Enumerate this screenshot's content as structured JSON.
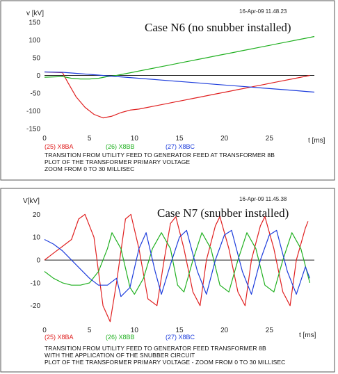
{
  "chart_data": [
    {
      "type": "line",
      "title": "Case N6 (no snubber installed)",
      "timestamp": "16-Apr-09  11.48.23",
      "ylabel": "v [kV]",
      "xlabel": "t [ms]",
      "xlim": [
        0,
        30
      ],
      "ylim": [
        -160,
        170
      ],
      "xticks": [
        0,
        5,
        10,
        15,
        20,
        25
      ],
      "yticks": [
        150,
        100,
        50,
        0,
        -50,
        -100,
        -150
      ],
      "legend": [
        "(25) X8BA",
        "(26) X8BB",
        "(27) X8BC"
      ],
      "caption": [
        "TRANSITION FROM UTILITY FEED TO GENERATOR FEED AT TRANSFORMER 8B",
        "PLOT OF THE TRANSFORMER PRIMARY VOLTAGE",
        "ZOOM FROM 0 TO 30 MILLISEC"
      ],
      "series": [
        {
          "name": "(25) X8BA",
          "color": "#e02020",
          "values": [
            [
              0,
              10
            ],
            [
              2,
              8
            ],
            [
              2.6,
              -20
            ],
            [
              3.5,
              -60
            ],
            [
              4.5,
              -90
            ],
            [
              5.5,
              -110
            ],
            [
              6.5,
              -120
            ],
            [
              7.5,
              -115
            ],
            [
              8.5,
              -105
            ],
            [
              9.5,
              -98
            ],
            [
              10.5,
              -95
            ],
            [
              11.5,
              -90
            ],
            [
              12.5,
              -85
            ],
            [
              13.5,
              -80
            ],
            [
              14.5,
              -75
            ],
            [
              15.5,
              -70
            ],
            [
              16.5,
              -65
            ],
            [
              17.5,
              -60
            ],
            [
              18.5,
              -55
            ],
            [
              19.5,
              -50
            ],
            [
              20.5,
              -45
            ],
            [
              21.5,
              -40
            ],
            [
              22.5,
              -35
            ],
            [
              23.5,
              -30
            ],
            [
              24.5,
              -25
            ],
            [
              25.5,
              -20
            ],
            [
              26.5,
              -15
            ],
            [
              27.5,
              -10
            ],
            [
              28.5,
              -5
            ],
            [
              29.5,
              0
            ]
          ]
        },
        {
          "name": "(26) X8BB",
          "color": "#20b020",
          "values": [
            [
              0,
              -5
            ],
            [
              2,
              -3
            ],
            [
              3,
              -8
            ],
            [
              4,
              -10
            ],
            [
              5,
              -10
            ],
            [
              6,
              -8
            ],
            [
              7,
              -3
            ],
            [
              8,
              0
            ],
            [
              9,
              5
            ],
            [
              10,
              10
            ],
            [
              11,
              15
            ],
            [
              12,
              20
            ],
            [
              13,
              25
            ],
            [
              14,
              30
            ],
            [
              15,
              35
            ],
            [
              16,
              40
            ],
            [
              17,
              45
            ],
            [
              18,
              50
            ],
            [
              19,
              55
            ],
            [
              20,
              60
            ],
            [
              21,
              65
            ],
            [
              22,
              70
            ],
            [
              23,
              75
            ],
            [
              24,
              80
            ],
            [
              25,
              85
            ],
            [
              26,
              90
            ],
            [
              27,
              95
            ],
            [
              28,
              100
            ],
            [
              29,
              105
            ],
            [
              30,
              110
            ]
          ]
        },
        {
          "name": "(27) X8BC",
          "color": "#1c3cdc",
          "values": [
            [
              0,
              10
            ],
            [
              2,
              9
            ],
            [
              3,
              7
            ],
            [
              4,
              5
            ],
            [
              5,
              3
            ],
            [
              6,
              1
            ],
            [
              7,
              -1
            ],
            [
              8,
              -3
            ],
            [
              9,
              -5
            ],
            [
              10,
              -7
            ],
            [
              11,
              -9
            ],
            [
              12,
              -11
            ],
            [
              13,
              -13
            ],
            [
              14,
              -15
            ],
            [
              15,
              -17
            ],
            [
              16,
              -19
            ],
            [
              17,
              -21
            ],
            [
              18,
              -23
            ],
            [
              19,
              -25
            ],
            [
              20,
              -27
            ],
            [
              21,
              -29
            ],
            [
              22,
              -31
            ],
            [
              23,
              -33
            ],
            [
              24,
              -35
            ],
            [
              25,
              -37
            ],
            [
              26,
              -39
            ],
            [
              27,
              -41
            ],
            [
              28,
              -43
            ],
            [
              29,
              -45
            ],
            [
              30,
              -47
            ]
          ]
        }
      ]
    },
    {
      "type": "line",
      "title": "Case N7 (snubber installed)",
      "timestamp": "16-Apr-09  11.45.38",
      "ylabel": "V[kV]",
      "xlabel": "t [ms]",
      "xlim": [
        0,
        30
      ],
      "ylim": [
        -28,
        25
      ],
      "xticks": [
        0,
        5,
        10,
        15,
        20,
        25
      ],
      "yticks": [
        20,
        10,
        0,
        -10,
        -20
      ],
      "legend": [
        "(25) X8BA",
        "(26) X8BB",
        "(27) X8BC"
      ],
      "caption": [
        "TRANSITION FROM UTILITY FEED TO GENERATOR FEED TRANSFORMER 8B",
        "WITH THE APPLICATION OF THE SNUBBER CIRCUIT",
        "PLOT OF THE TRANSFORMER PRIMARY VOLTAGE - ZOOM FROM 0 TO 30 MILLISEC"
      ],
      "series": [
        {
          "name": "(25) X8BA",
          "color": "#e02020",
          "values": [
            [
              0,
              0
            ],
            [
              1,
              3
            ],
            [
              2,
              6
            ],
            [
              3,
              9
            ],
            [
              3.8,
              18
            ],
            [
              4.5,
              20
            ],
            [
              5.5,
              10
            ],
            [
              6.5,
              -20
            ],
            [
              7.3,
              -27
            ],
            [
              8,
              -10
            ],
            [
              9,
              18
            ],
            [
              9.6,
              20
            ],
            [
              10.5,
              5
            ],
            [
              11.5,
              -17
            ],
            [
              12.5,
              -20
            ],
            [
              13.3,
              0
            ],
            [
              14,
              16
            ],
            [
              14.6,
              19
            ],
            [
              15.5,
              5
            ],
            [
              16.5,
              -14
            ],
            [
              17.3,
              -20
            ],
            [
              18,
              0
            ],
            [
              19,
              15
            ],
            [
              19.5,
              19
            ],
            [
              20.5,
              5
            ],
            [
              21.5,
              -14
            ],
            [
              22.3,
              -20
            ],
            [
              23,
              0
            ],
            [
              24,
              15
            ],
            [
              24.5,
              19
            ],
            [
              25.5,
              5
            ],
            [
              26.5,
              -14
            ],
            [
              27.3,
              -20
            ],
            [
              28,
              0
            ],
            [
              29,
              14
            ],
            [
              29.3,
              17
            ]
          ]
        },
        {
          "name": "(26) X8BB",
          "color": "#20b020",
          "values": [
            [
              0,
              -5
            ],
            [
              1,
              -8
            ],
            [
              2,
              -10
            ],
            [
              3,
              -11
            ],
            [
              4,
              -11
            ],
            [
              5,
              -10
            ],
            [
              6,
              -5
            ],
            [
              7,
              5
            ],
            [
              7.5,
              12
            ],
            [
              8.5,
              5
            ],
            [
              9.5,
              -12
            ],
            [
              10,
              -15
            ],
            [
              11,
              -8
            ],
            [
              12,
              5
            ],
            [
              13,
              12
            ],
            [
              14,
              5
            ],
            [
              14.8,
              -11
            ],
            [
              15.5,
              -14
            ],
            [
              16.5,
              0
            ],
            [
              17.5,
              12
            ],
            [
              18.5,
              5
            ],
            [
              19.5,
              -11
            ],
            [
              20.5,
              -14
            ],
            [
              21.5,
              0
            ],
            [
              22.5,
              12
            ],
            [
              23.5,
              5
            ],
            [
              24.5,
              -11
            ],
            [
              25.5,
              -14
            ],
            [
              26.5,
              0
            ],
            [
              27.5,
              12
            ],
            [
              28.5,
              5
            ],
            [
              29.5,
              -10
            ]
          ]
        },
        {
          "name": "(27) X8BC",
          "color": "#1c3cdc",
          "values": [
            [
              0,
              9
            ],
            [
              1,
              7
            ],
            [
              2,
              4
            ],
            [
              3,
              0
            ],
            [
              4,
              -4
            ],
            [
              5,
              -8
            ],
            [
              6,
              -11
            ],
            [
              7,
              -11
            ],
            [
              8,
              -8
            ],
            [
              8.5,
              -16
            ],
            [
              9.5,
              -12
            ],
            [
              10.5,
              5
            ],
            [
              11.3,
              12
            ],
            [
              12.3,
              -5
            ],
            [
              13,
              -15
            ],
            [
              14,
              -2
            ],
            [
              15,
              10
            ],
            [
              15.8,
              13
            ],
            [
              17,
              -5
            ],
            [
              18,
              -15
            ],
            [
              19,
              0
            ],
            [
              20,
              11
            ],
            [
              20.8,
              13
            ],
            [
              22,
              -5
            ],
            [
              23,
              -15
            ],
            [
              24,
              0
            ],
            [
              25,
              11
            ],
            [
              25.8,
              13
            ],
            [
              27,
              -5
            ],
            [
              28,
              -15
            ],
            [
              29,
              -3
            ],
            [
              29.5,
              -8
            ]
          ]
        }
      ]
    }
  ]
}
